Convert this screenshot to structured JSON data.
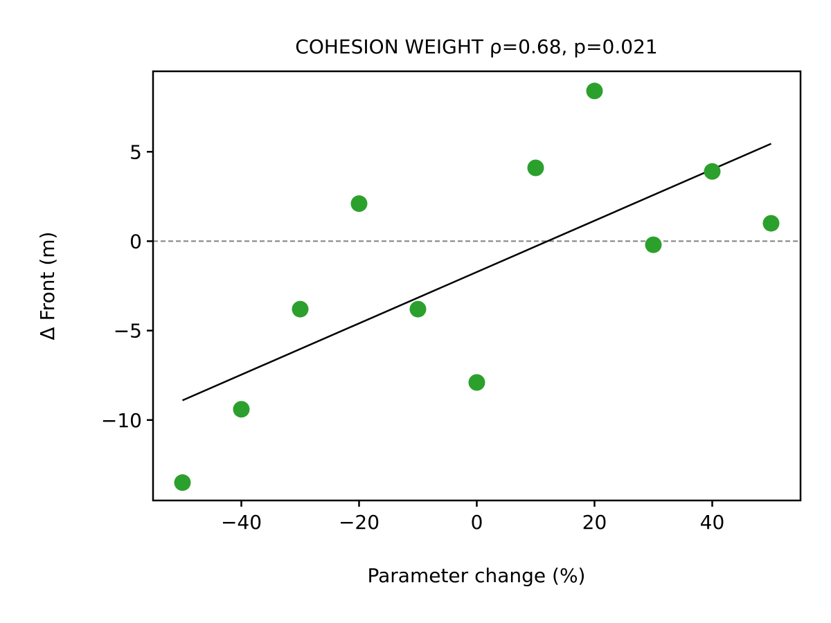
{
  "chart_data": {
    "type": "scatter",
    "title": "COHESION WEIGHT  ρ=0.68, p=0.021",
    "xlabel": "Parameter change (%)",
    "ylabel": "Δ Front (m)",
    "xlim": [
      -55,
      55
    ],
    "ylim": [
      -14.5,
      9.5
    ],
    "xticks": [
      -40,
      -20,
      0,
      20,
      40
    ],
    "xtick_labels": [
      "−40",
      "−20",
      "0",
      "20",
      "40"
    ],
    "yticks": [
      -10,
      -5,
      0,
      5
    ],
    "ytick_labels": [
      "−10",
      "−5",
      "0",
      "5"
    ],
    "grid": false,
    "series": [
      {
        "color": "#2ca02c",
        "points": [
          {
            "x": -50,
            "y": -13.5
          },
          {
            "x": -40,
            "y": -9.4
          },
          {
            "x": -30,
            "y": -3.8
          },
          {
            "x": -20,
            "y": 2.1
          },
          {
            "x": -10,
            "y": -3.8
          },
          {
            "x": 0,
            "y": -7.9
          },
          {
            "x": 10,
            "y": 4.1
          },
          {
            "x": 20,
            "y": 8.4
          },
          {
            "x": 30,
            "y": -0.2
          },
          {
            "x": 40,
            "y": 3.9
          },
          {
            "x": 50,
            "y": 1.0
          }
        ]
      }
    ],
    "fit_line": {
      "color": "#000000",
      "x": [
        -50,
        50
      ],
      "y": [
        -8.9,
        5.45
      ]
    },
    "reference_line": {
      "y": 0,
      "color": "#808080",
      "style": "dashed"
    }
  }
}
